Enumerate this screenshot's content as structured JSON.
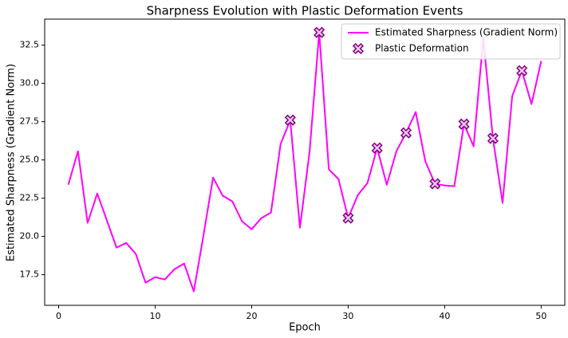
{
  "chart_data": {
    "type": "line",
    "title": "Sharpness Evolution with Plastic Deformation Events",
    "xlabel": "Epoch",
    "ylabel": "Estimated Sharpness (Gradient Norm)",
    "xlim": [
      -1.45,
      52.45
    ],
    "ylim": [
      15.5,
      34.2
    ],
    "xticks": [
      0,
      10,
      20,
      30,
      40,
      50
    ],
    "yticks": [
      17.5,
      {
        "value": 20,
        "label": "20.0"
      },
      22.5,
      {
        "value": 25,
        "label": "25.0"
      },
      27.5,
      {
        "value": 30,
        "label": "30.0"
      },
      32.5
    ],
    "grid": false,
    "legend": "upper right",
    "series": [
      {
        "name": "Estimated Sharpness (Gradient Norm)",
        "type": "line",
        "color": "#ff00ff",
        "x": [
          1,
          2,
          3,
          4,
          5,
          6,
          7,
          8,
          9,
          10,
          11,
          12,
          13,
          14,
          15,
          16,
          17,
          18,
          19,
          20,
          21,
          22,
          23,
          24,
          25,
          26,
          27,
          28,
          29,
          30,
          31,
          32,
          33,
          34,
          35,
          36,
          37,
          38,
          39,
          40,
          41,
          42,
          43,
          44,
          45,
          46,
          47,
          48,
          49,
          50
        ],
        "values": [
          23.38,
          25.57,
          20.89,
          22.81,
          21.04,
          19.27,
          19.58,
          18.85,
          16.98,
          17.34,
          17.19,
          17.86,
          18.23,
          16.41,
          20.05,
          23.85,
          22.66,
          22.29,
          20.99,
          20.47,
          21.2,
          21.56,
          26.04,
          27.6,
          20.57,
          25.52,
          33.33,
          24.38,
          23.75,
          21.2,
          22.7,
          23.49,
          25.78,
          23.38,
          25.57,
          26.77,
          28.13,
          24.9,
          23.44,
          23.33,
          23.28,
          27.34,
          25.89,
          32.97,
          26.41,
          22.19,
          29.17,
          30.83,
          28.65,
          31.46
        ]
      },
      {
        "name": "Plastic Deformation",
        "type": "scatter",
        "color": "#f3c6f3",
        "edgecolor": "#800080",
        "x": [
          24,
          27,
          30,
          33,
          36,
          39,
          42,
          45,
          48
        ],
        "values": [
          27.6,
          33.33,
          21.2,
          25.78,
          26.77,
          23.44,
          27.34,
          26.41,
          30.83
        ]
      }
    ]
  }
}
